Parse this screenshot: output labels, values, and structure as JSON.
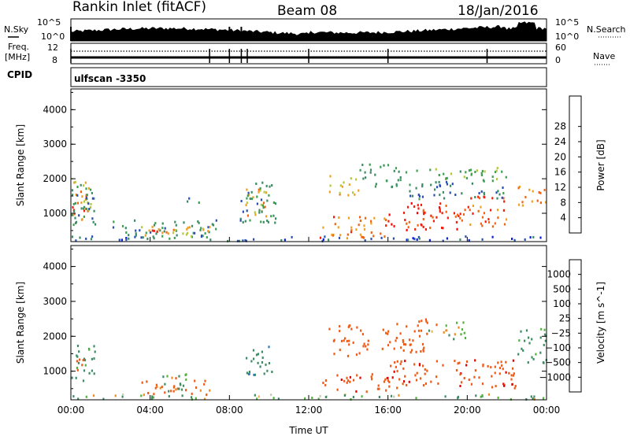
{
  "header": {
    "station": "Rankin Inlet (fitACF)",
    "beam": "Beam 08",
    "date": "18/Jan/2016"
  },
  "noise_panel": {
    "left_label": "N.Sky",
    "left_ticks": [
      "10^5",
      "10^0"
    ],
    "right_label": "N.Search",
    "right_ticks": [
      "10^5",
      "10^0"
    ]
  },
  "freq_panel": {
    "left_label_1": "Freq.",
    "left_label_2": "[MHz]",
    "left_ticks": [
      "12",
      "8"
    ],
    "right_label": "Nave",
    "right_ticks": [
      "60",
      "0"
    ],
    "cpid_label": "CPID",
    "cpid_value": "ulfscan -3350"
  },
  "colors": {
    "power_scale": [
      "#0a1ee6",
      "#2850b4",
      "#3c8c64",
      "#3ca050",
      "#b4c83c",
      "#f0a020",
      "#f06414",
      "#f01e0a",
      "#ff0000"
    ],
    "velocity_scale": [
      "#e60000",
      "#f05a14",
      "#f08c1e",
      "#f0b450",
      "#c8c8b4",
      "#50b43c",
      "#3c8c64",
      "#2878b4",
      "#1e46b4"
    ]
  },
  "chart_data": [
    {
      "type": "heatmap",
      "name": "power",
      "ylabel": "Slant Range [km]",
      "xlabel": "Time UT",
      "x_ticks": [
        "00:00",
        "04:00",
        "08:00",
        "12:00",
        "16:00",
        "20:00",
        "00:00"
      ],
      "x_range_hours": [
        0,
        24
      ],
      "y_range_km": [
        180,
        4600
      ],
      "y_ticks": [
        1000,
        2000,
        3000,
        4000
      ],
      "colorbar": {
        "label": "Power [dB]",
        "ticks": [
          4,
          8,
          12,
          16,
          20,
          24,
          28
        ],
        "range": [
          0,
          32
        ]
      },
      "regions": [
        {
          "t0": 0.0,
          "t1": 0.9,
          "r0": 900,
          "r1": 1700,
          "value": 28
        },
        {
          "t0": 0.0,
          "t1": 1.2,
          "r0": 750,
          "r1": 1900,
          "value": 18
        },
        {
          "t0": 0.0,
          "t1": 1.3,
          "r0": 600,
          "r1": 1850,
          "value": 10
        },
        {
          "t0": 2.0,
          "t1": 7.5,
          "r0": 250,
          "r1": 800,
          "value": 10
        },
        {
          "t0": 3.5,
          "t1": 7.0,
          "r0": 250,
          "r1": 600,
          "value": 20
        },
        {
          "t0": 4.0,
          "t1": 5.5,
          "r0": 350,
          "r1": 550,
          "value": 26
        },
        {
          "t0": 5.5,
          "t1": 6.5,
          "r0": 1250,
          "r1": 1450,
          "value": 11
        },
        {
          "t0": 8.8,
          "t1": 10.0,
          "r0": 800,
          "r1": 1700,
          "value": 22
        },
        {
          "t0": 8.5,
          "t1": 10.5,
          "r0": 700,
          "r1": 1900,
          "value": 11
        },
        {
          "t0": 12.5,
          "t1": 16.0,
          "r0": 250,
          "r1": 900,
          "value": 25
        },
        {
          "t0": 16.0,
          "t1": 20.0,
          "r0": 500,
          "r1": 1300,
          "value": 29
        },
        {
          "t0": 20.0,
          "t1": 22.0,
          "r0": 600,
          "r1": 1500,
          "value": 27
        },
        {
          "t0": 22.5,
          "t1": 24.0,
          "r0": 1200,
          "r1": 1800,
          "value": 24
        },
        {
          "t0": 13.0,
          "t1": 14.5,
          "r0": 1500,
          "r1": 2100,
          "value": 21
        },
        {
          "t0": 14.5,
          "t1": 16.5,
          "r0": 1700,
          "r1": 2400,
          "value": 12
        },
        {
          "t0": 16.5,
          "t1": 22.0,
          "r0": 1900,
          "r1": 2300,
          "value": 14
        },
        {
          "t0": 17.0,
          "t1": 22.0,
          "r0": 1400,
          "r1": 1900,
          "value": 9
        },
        {
          "t0": 0.0,
          "t1": 24.0,
          "r0": 180,
          "r1": 320,
          "value": 6
        }
      ]
    },
    {
      "type": "heatmap",
      "name": "velocity",
      "ylabel": "Slant Range [km]",
      "xlabel": "Time UT",
      "x_ticks": [
        "00:00",
        "04:00",
        "08:00",
        "12:00",
        "16:00",
        "20:00",
        "00:00"
      ],
      "x_range_hours": [
        0,
        24
      ],
      "y_range_km": [
        180,
        4600
      ],
      "y_ticks": [
        1000,
        2000,
        3000,
        4000
      ],
      "colorbar": {
        "label": "Velocity [m s^-1]",
        "ticks": [
          "1000",
          "500",
          "100",
          "25",
          "−25",
          "−100",
          "−500",
          "−1000"
        ]
      },
      "regions": [
        {
          "t0": 0.0,
          "t1": 1.2,
          "r0": 700,
          "r1": 1800,
          "value": 200
        },
        {
          "t0": 0.2,
          "t1": 0.8,
          "r0": 900,
          "r1": 1400,
          "value": -300
        },
        {
          "t0": 3.5,
          "t1": 7.0,
          "r0": 300,
          "r1": 800,
          "value": -200
        },
        {
          "t0": 4.5,
          "t1": 6.0,
          "r0": 400,
          "r1": 900,
          "value": 200
        },
        {
          "t0": 8.8,
          "t1": 10.3,
          "r0": 800,
          "r1": 1700,
          "value": 400
        },
        {
          "t0": 12.5,
          "t1": 16.0,
          "r0": 400,
          "r1": 900,
          "value": -400
        },
        {
          "t0": 16.0,
          "t1": 22.5,
          "r0": 500,
          "r1": 1300,
          "value": -400
        },
        {
          "t0": 13.0,
          "t1": 15.0,
          "r0": 1400,
          "r1": 2300,
          "value": -300
        },
        {
          "t0": 15.5,
          "t1": 18.0,
          "r0": 1500,
          "r1": 2500,
          "value": -350
        },
        {
          "t0": 18.0,
          "t1": 20.0,
          "r0": 1900,
          "r1": 2400,
          "value": 0
        },
        {
          "t0": 22.5,
          "t1": 24.0,
          "r0": 1200,
          "r1": 2200,
          "value": 200
        },
        {
          "t0": 0.0,
          "t1": 24.0,
          "r0": 180,
          "r1": 320,
          "value": 80
        }
      ]
    }
  ]
}
